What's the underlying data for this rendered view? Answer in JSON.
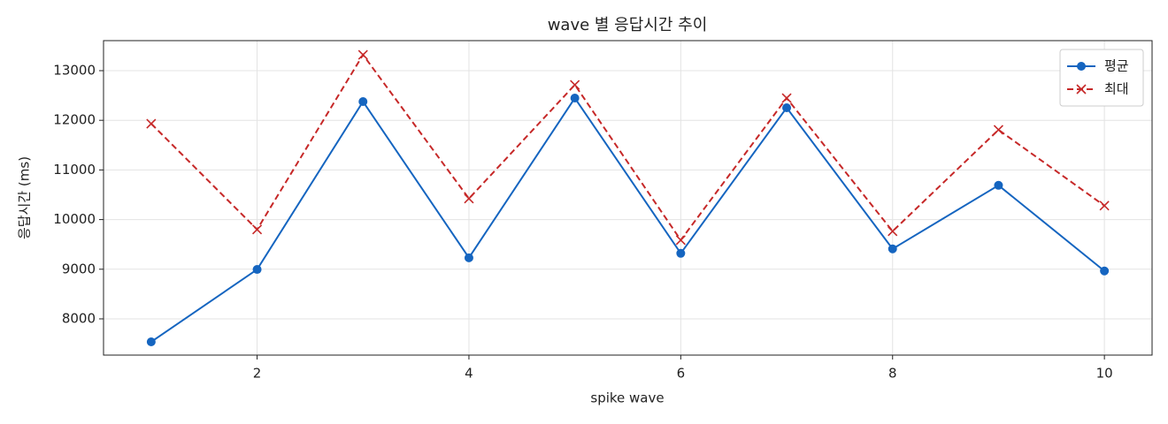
{
  "chart_data": {
    "type": "line",
    "title": "wave 별 응답시간 추이",
    "x_label": "spike wave",
    "y_label": "응답시간 (ms)",
    "x": [
      1,
      2,
      3,
      4,
      5,
      6,
      7,
      8,
      9,
      10
    ],
    "series": [
      {
        "name": "평균",
        "color": "#1565c0",
        "marker": "o",
        "linestyle": "solid",
        "values": [
          7537,
          8995,
          12377,
          9230,
          12448,
          9320,
          12253,
          9410,
          10690,
          8965
        ]
      },
      {
        "name": "최대",
        "color": "#c62828",
        "marker": "x",
        "linestyle": "dashed",
        "values": [
          11932,
          9800,
          13320,
          10423,
          12715,
          9587,
          12448,
          9765,
          11808,
          10280
        ]
      }
    ],
    "xlim": [
      0.55,
      10.45
    ],
    "xticks": [
      2,
      4,
      6,
      8,
      10
    ],
    "ylim": [
      7270,
      13605
    ],
    "yticks": [
      8000,
      9000,
      10000,
      11000,
      12000,
      13000
    ],
    "grid": true,
    "legend": "upper right"
  }
}
